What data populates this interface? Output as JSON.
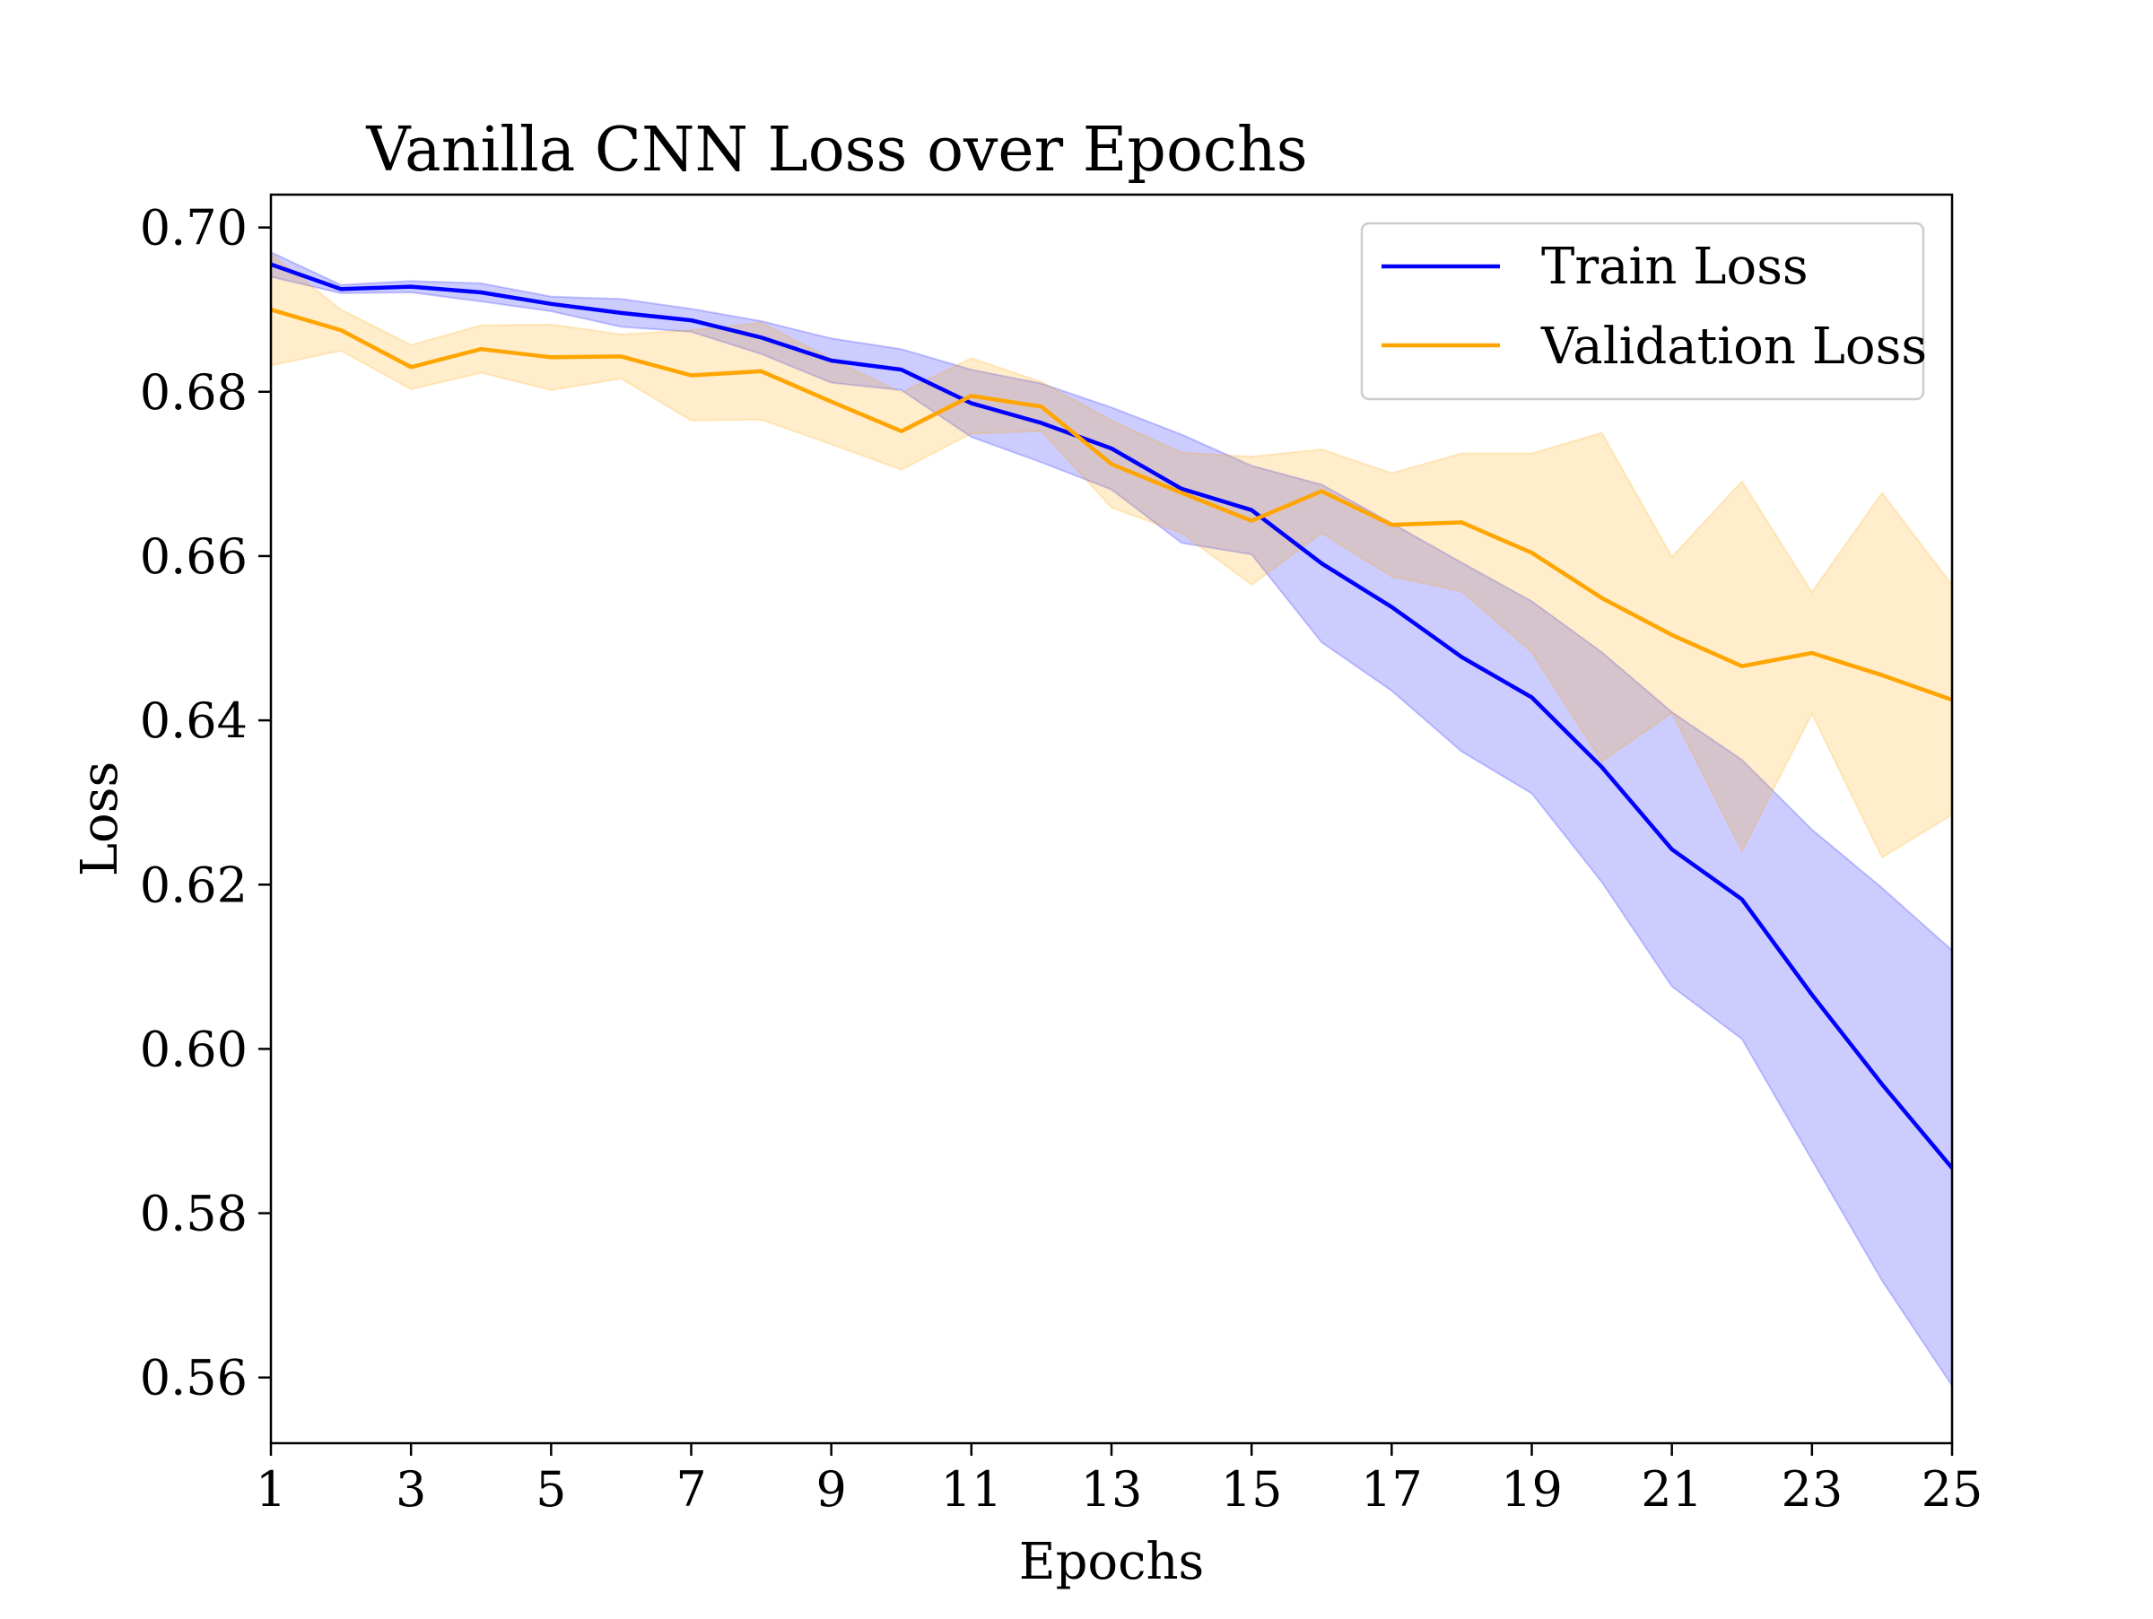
{
  "chart_data": {
    "type": "line",
    "title": "Vanilla CNN Loss over Epochs",
    "xlabel": "Epochs",
    "ylabel": "Loss",
    "xlim": [
      1,
      25
    ],
    "ylim": [
      0.552,
      0.704
    ],
    "xticks": [
      1,
      3,
      5,
      7,
      9,
      11,
      13,
      15,
      17,
      19,
      21,
      23,
      25
    ],
    "xtick_labels": [
      "1",
      "3",
      "5",
      "7",
      "9",
      "11",
      "13",
      "15",
      "17",
      "19",
      "21",
      "23",
      "25"
    ],
    "yticks": [
      0.56,
      0.58,
      0.6,
      0.62,
      0.64,
      0.66,
      0.68,
      0.7
    ],
    "ytick_labels": [
      "0.56",
      "0.58",
      "0.60",
      "0.62",
      "0.64",
      "0.66",
      "0.68",
      "0.70"
    ],
    "grid": false,
    "legend_position": "top-right",
    "x": [
      1,
      2,
      3,
      4,
      5,
      6,
      7,
      8,
      9,
      10,
      11,
      12,
      13,
      14,
      15,
      16,
      17,
      18,
      19,
      20,
      21,
      22,
      23,
      24,
      25
    ],
    "series": [
      {
        "name": "Train Loss",
        "color": "#0000ff",
        "band_color": "#0000ff",
        "values": [
          0.6955,
          0.6925,
          0.6928,
          0.6921,
          0.6907,
          0.6896,
          0.6887,
          0.6866,
          0.6838,
          0.6827,
          0.6786,
          0.6762,
          0.6731,
          0.6682,
          0.6656,
          0.6591,
          0.6538,
          0.6477,
          0.6428,
          0.6343,
          0.6243,
          0.6182,
          0.6066,
          0.5957,
          0.5855
        ],
        "lower": [
          0.694,
          0.692,
          0.6921,
          0.691,
          0.6898,
          0.6879,
          0.6873,
          0.6846,
          0.6811,
          0.6802,
          0.6745,
          0.6714,
          0.6681,
          0.6616,
          0.6602,
          0.6495,
          0.6436,
          0.6362,
          0.6311,
          0.6203,
          0.6076,
          0.6012,
          0.5865,
          0.5718,
          0.559
        ],
        "upper": [
          0.697,
          0.693,
          0.6935,
          0.6932,
          0.6916,
          0.6913,
          0.6901,
          0.6886,
          0.6865,
          0.6852,
          0.6827,
          0.681,
          0.6781,
          0.6748,
          0.671,
          0.6687,
          0.664,
          0.6592,
          0.6545,
          0.6483,
          0.641,
          0.6352,
          0.6267,
          0.6196,
          0.612
        ]
      },
      {
        "name": "Validation Loss",
        "color": "#ffa500",
        "band_color": "#ffa500",
        "values": [
          0.69,
          0.6875,
          0.683,
          0.6852,
          0.6842,
          0.6843,
          0.682,
          0.6825,
          0.6788,
          0.6752,
          0.6795,
          0.6782,
          0.6712,
          0.6677,
          0.6643,
          0.6679,
          0.6638,
          0.6641,
          0.6604,
          0.6549,
          0.6504,
          0.6466,
          0.6482,
          0.6455,
          0.6425
        ],
        "lower": [
          0.6832,
          0.685,
          0.6803,
          0.6823,
          0.6802,
          0.6816,
          0.6765,
          0.6766,
          0.6736,
          0.6705,
          0.6749,
          0.6752,
          0.6659,
          0.6628,
          0.6565,
          0.6628,
          0.6575,
          0.6557,
          0.6483,
          0.635,
          0.6409,
          0.6241,
          0.6408,
          0.6233,
          0.6285
        ],
        "upper": [
          0.6968,
          0.69,
          0.6857,
          0.6881,
          0.6882,
          0.687,
          0.6875,
          0.6884,
          0.684,
          0.6799,
          0.6841,
          0.6812,
          0.6765,
          0.6726,
          0.6721,
          0.673,
          0.6701,
          0.6725,
          0.6725,
          0.675,
          0.6599,
          0.6691,
          0.6556,
          0.6677,
          0.6565
        ]
      }
    ]
  }
}
